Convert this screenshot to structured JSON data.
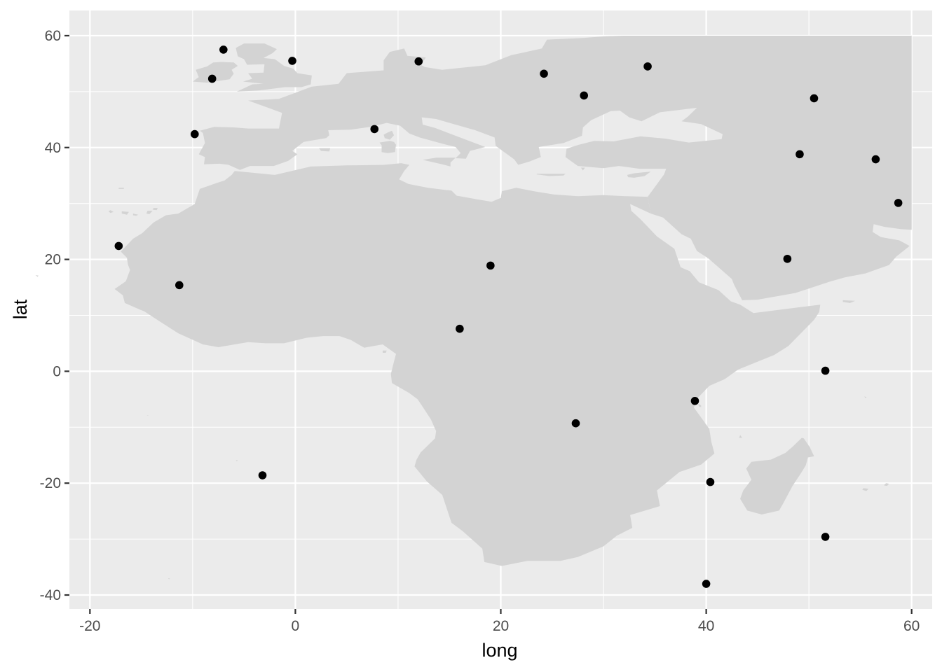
{
  "chart_data": {
    "type": "scatter",
    "title": "",
    "xlabel": "long",
    "ylabel": "lat",
    "xlim": [
      -22,
      62
    ],
    "ylim": [
      -42.5,
      64.5
    ],
    "x_ticks": [
      -20,
      0,
      20,
      40,
      60
    ],
    "x_tick_labels": [
      "-20",
      "0",
      "20",
      "40",
      "60"
    ],
    "y_ticks": [
      -40,
      -20,
      0,
      20,
      40,
      60
    ],
    "y_tick_labels": [
      "-40",
      "-20",
      "0",
      "20",
      "40",
      "60"
    ],
    "x_minor_ticks": [
      -10,
      10,
      30,
      50
    ],
    "y_minor_ticks": [
      -30,
      -10,
      10,
      30,
      50
    ],
    "grid": true,
    "legend": "none",
    "background": "map of Europe, Africa and the Middle East",
    "points": [
      {
        "x": -7.0,
        "y": 57.5
      },
      {
        "x": -8.1,
        "y": 52.3
      },
      {
        "x": -0.3,
        "y": 55.5
      },
      {
        "x": 12.0,
        "y": 55.4
      },
      {
        "x": -9.8,
        "y": 42.4
      },
      {
        "x": 7.7,
        "y": 43.3
      },
      {
        "x": 24.2,
        "y": 53.2
      },
      {
        "x": 28.1,
        "y": 49.3
      },
      {
        "x": 34.3,
        "y": 54.5
      },
      {
        "x": 50.5,
        "y": 48.8
      },
      {
        "x": 49.1,
        "y": 38.8
      },
      {
        "x": 56.5,
        "y": 37.9
      },
      {
        "x": 58.7,
        "y": 30.1
      },
      {
        "x": -17.2,
        "y": 22.4
      },
      {
        "x": -11.3,
        "y": 15.4
      },
      {
        "x": 19.0,
        "y": 18.9
      },
      {
        "x": 16.0,
        "y": 7.6
      },
      {
        "x": 47.9,
        "y": 20.1
      },
      {
        "x": 51.6,
        "y": 0.1
      },
      {
        "x": 38.9,
        "y": -5.3
      },
      {
        "x": 27.3,
        "y": -9.3
      },
      {
        "x": 40.4,
        "y": -19.8
      },
      {
        "x": -3.2,
        "y": -18.6
      },
      {
        "x": 51.6,
        "y": -29.6
      },
      {
        "x": 40.0,
        "y": -38.0
      }
    ]
  },
  "colors": {
    "panel_background": "#EBEBEB",
    "grid_major": "#FFFFFF",
    "land": "#D3D3D3",
    "point": "#000000",
    "tick_label": "#4D4D4D",
    "axis_title": "#000000"
  }
}
